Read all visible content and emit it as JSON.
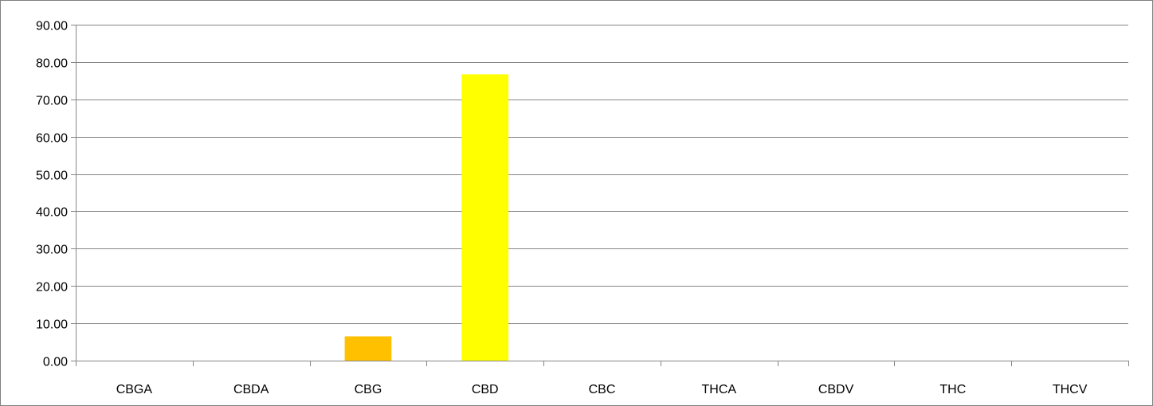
{
  "chart_data": {
    "type": "bar",
    "categories": [
      "CBGA",
      "CBDA",
      "CBG",
      "CBD",
      "CBC",
      "THCA",
      "CBDV",
      "THC",
      "THCV"
    ],
    "values": [
      0,
      0,
      6.5,
      76.7,
      0,
      0,
      0,
      0,
      0
    ],
    "bar_colors": [
      "#FFC000",
      "#FFC000",
      "#FFC000",
      "#FFFF00",
      "#FFC000",
      "#FFC000",
      "#FFC000",
      "#FFC000",
      "#FFC000"
    ],
    "y_ticks": [
      "0.00",
      "10.00",
      "20.00",
      "30.00",
      "40.00",
      "50.00",
      "60.00",
      "70.00",
      "80.00",
      "90.00"
    ],
    "ylim": [
      0,
      90
    ],
    "title": "",
    "xlabel": "",
    "ylabel": "",
    "grid": true,
    "legend": "none"
  }
}
